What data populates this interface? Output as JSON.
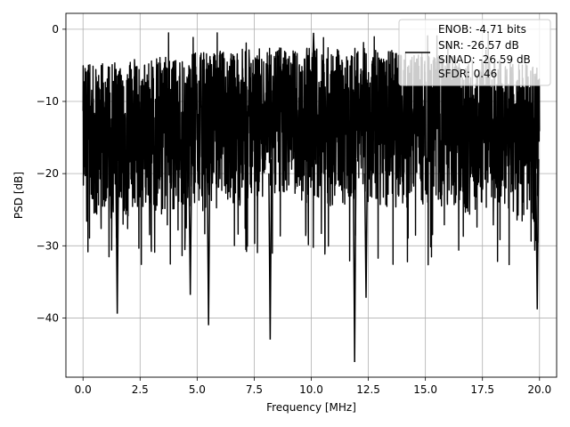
{
  "chart_data": {
    "type": "line",
    "xlabel": "Frequency [MHz]",
    "ylabel": "PSD [dB]",
    "xlim": [
      -0.75,
      20.75
    ],
    "ylim": [
      -48.2,
      2.2
    ],
    "grid": true,
    "x_ticks": [
      0.0,
      2.5,
      5.0,
      7.5,
      10.0,
      12.5,
      15.0,
      17.5,
      20.0
    ],
    "x_tick_labels": [
      "0.0",
      "2.5",
      "5.0",
      "7.5",
      "10.0",
      "12.5",
      "15.0",
      "17.5",
      "20.0"
    ],
    "y_ticks": [
      0,
      -10,
      -20,
      -30,
      -40
    ],
    "y_tick_labels": [
      "0",
      "−10",
      "−20",
      "−30",
      "−40"
    ],
    "legend": {
      "placement": "top-right",
      "lines": [
        "ENOB: -4.71 bits",
        "SNR: -26.57 dB",
        "SINAD: -26.59 dB",
        "SFDR: 0.46"
      ]
    },
    "series": [
      {
        "color": "#000000",
        "x_range": [
          0.0,
          20.0
        ],
        "typical_band": [
          -27,
          -7
        ],
        "max_value": -0.5,
        "min_value": -46.1,
        "deep_dips": [
          {
            "x": 1.5,
            "y": -39.4
          },
          {
            "x": 4.7,
            "y": -36.8
          },
          {
            "x": 5.5,
            "y": -41.0
          },
          {
            "x": 8.2,
            "y": -43.0
          },
          {
            "x": 11.9,
            "y": -46.1
          },
          {
            "x": 12.4,
            "y": -37.2
          },
          {
            "x": 19.9,
            "y": -38.8
          }
        ]
      }
    ]
  }
}
